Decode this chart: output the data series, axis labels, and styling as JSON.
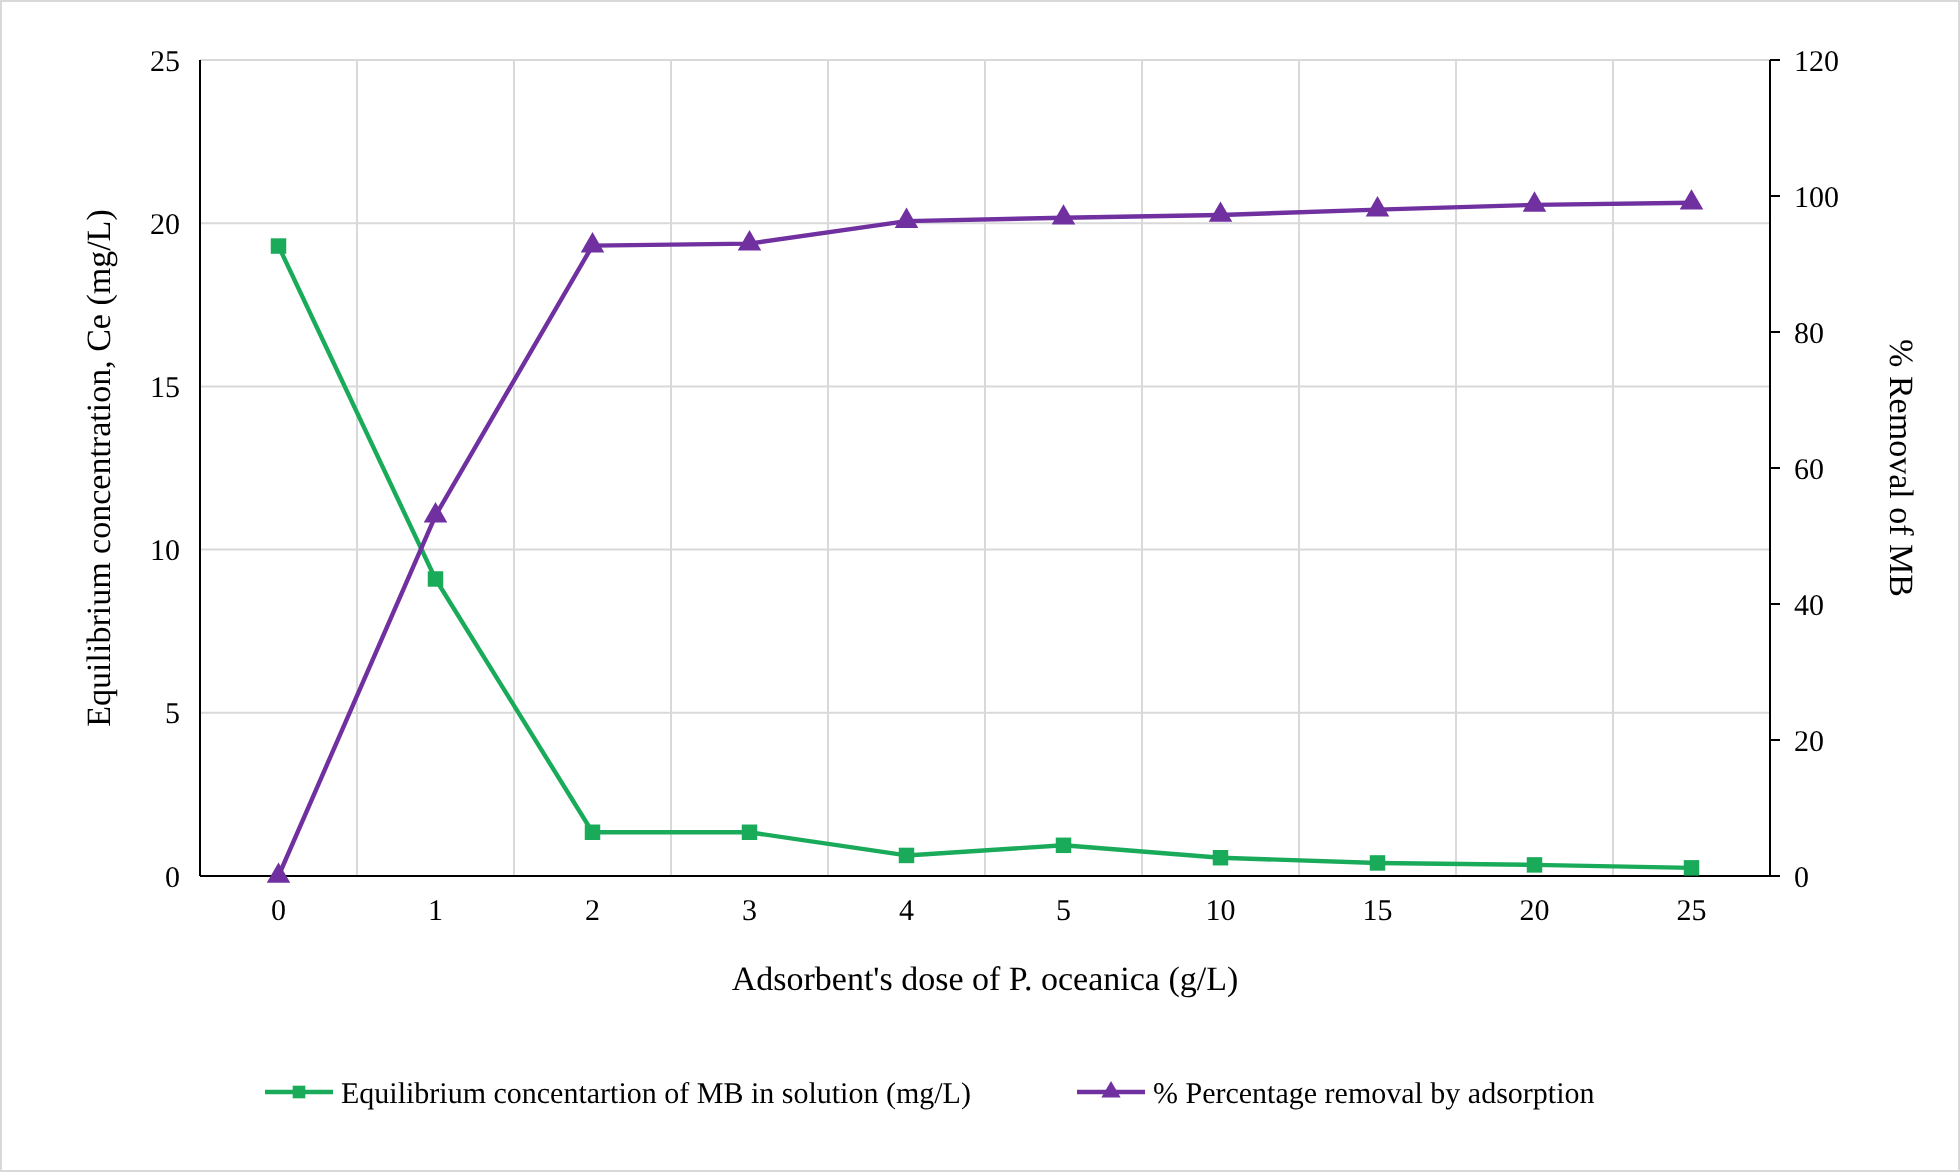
{
  "chart_data": {
    "type": "line",
    "xlabel": "Adsorbent's dose of P. oceanica (g/L)",
    "ylabel": "Equilibrium concentration, Ce (mg/L)",
    "y2label": "% Removal of MB",
    "categories": [
      "0",
      "1",
      "2",
      "3",
      "4",
      "5",
      "10",
      "15",
      "20",
      "25"
    ],
    "series": [
      {
        "name": "Equilibrium concentartion of MB in solution (mg/L)",
        "color": "#1aab5a",
        "marker": "square",
        "values": [
          19.3,
          9.1,
          1.34,
          1.34,
          0.63,
          0.94,
          0.56,
          0.4,
          0.34,
          0.25
        ]
      },
      {
        "name": "% Percentage removal by adsorption",
        "color": "#7030a0",
        "marker": "triangle",
        "axis": "y2",
        "values": [
          0,
          53,
          92.7,
          93,
          96.3,
          96.8,
          97.2,
          98,
          98.7,
          99
        ]
      }
    ],
    "ylim": [
      0,
      25
    ],
    "yticks": [
      0,
      5,
      10,
      15,
      20,
      25
    ],
    "y2lim": [
      0,
      120
    ],
    "y2ticks": [
      0,
      20,
      40,
      60,
      80,
      100,
      120
    ],
    "grid": true,
    "legend": "bottom"
  }
}
